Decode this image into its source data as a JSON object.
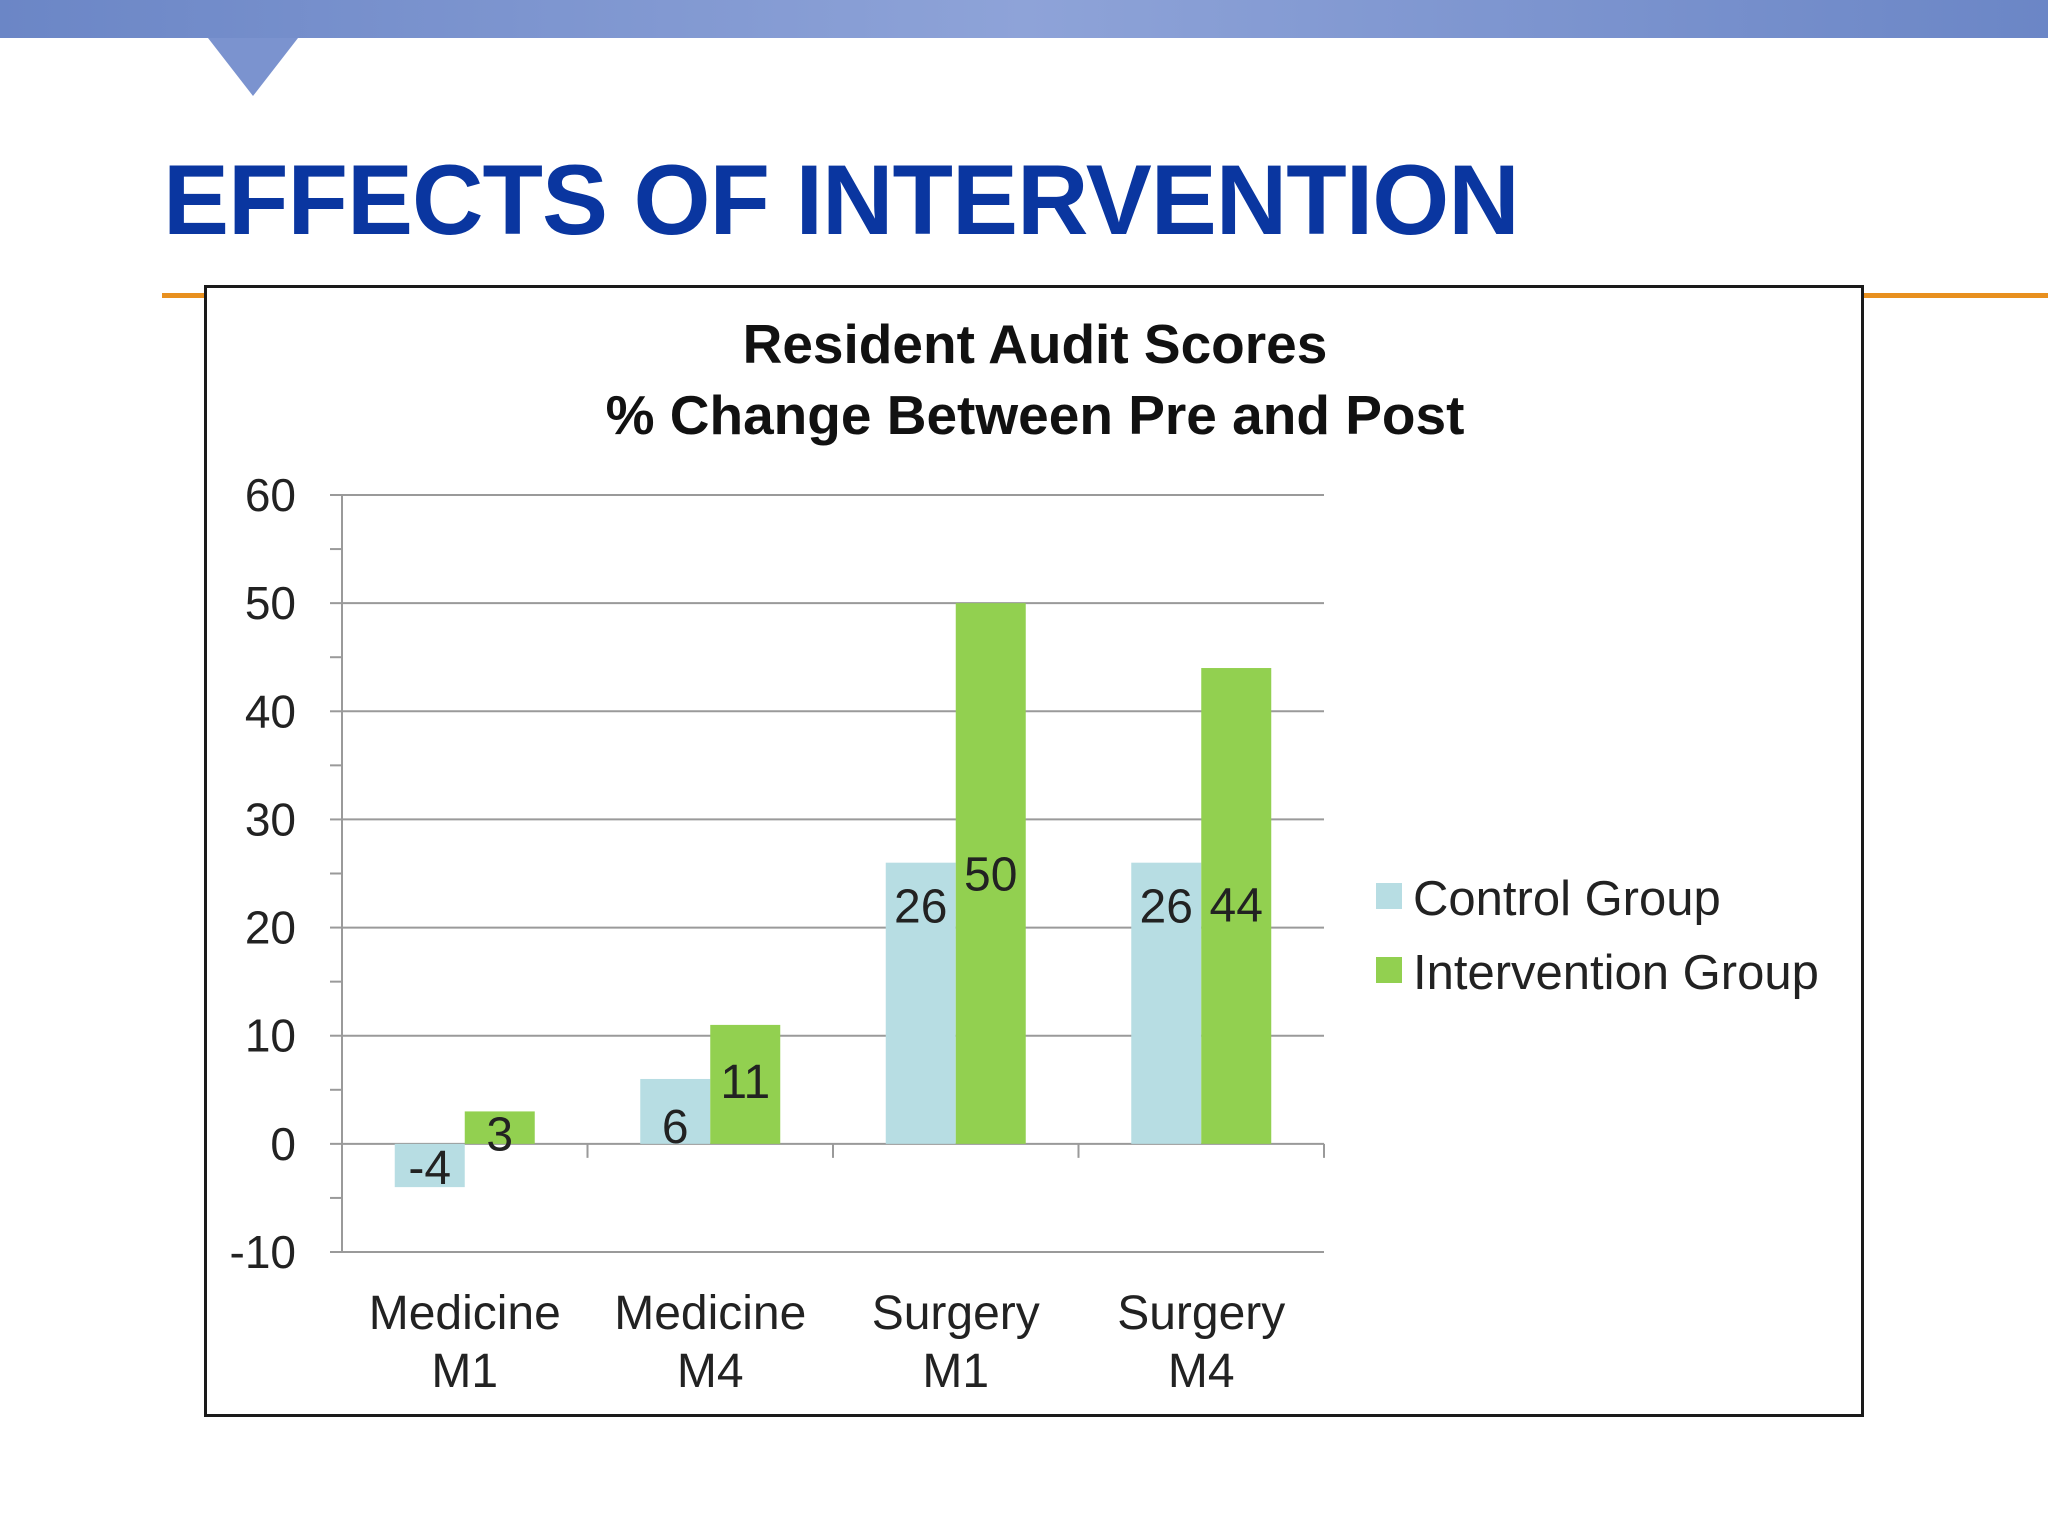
{
  "slide": {
    "title": "EFFECTS OF INTERVENTION"
  },
  "colors": {
    "band": "#7b93cf",
    "title": "#0a36a0",
    "rule": "#e8901f",
    "control": "#b7dde3",
    "intervention": "#92d050"
  },
  "chart_data": {
    "type": "bar",
    "title": "Resident Audit Scores",
    "subtitle": "% Change Between Pre and Post",
    "xlabel": "",
    "ylabel": "",
    "categories": [
      [
        "Medicine",
        "M1"
      ],
      [
        "Medicine",
        "M4"
      ],
      [
        "Surgery",
        "M1"
      ],
      [
        "Surgery",
        "M4"
      ]
    ],
    "series": [
      {
        "name": "Control Group",
        "values": [
          -4,
          6,
          26,
          26
        ],
        "color": "#b7dde3"
      },
      {
        "name": "Intervention Group",
        "values": [
          3,
          11,
          50,
          44
        ],
        "color": "#92d050"
      }
    ],
    "ylim": [
      -10,
      60
    ],
    "yticks": [
      "60",
      "50",
      "40",
      "30",
      "20",
      "10",
      "0",
      "-10"
    ],
    "grid": true,
    "legend_position": "right"
  }
}
